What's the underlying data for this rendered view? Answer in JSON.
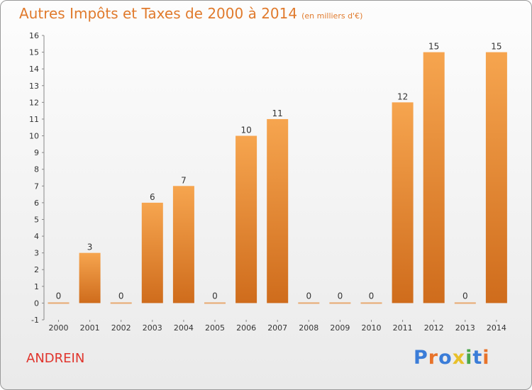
{
  "header": {
    "title": "Autres Impôts et Taxes de 2000 à 2014",
    "unit": "(en milliers d'€)"
  },
  "commune": "ANDREIN",
  "logo": {
    "text": "Proxiti",
    "letters": [
      {
        "ch": "P",
        "color": "#3b7dd8"
      },
      {
        "ch": "r",
        "color": "#e8732a"
      },
      {
        "ch": "o",
        "color": "#3b7dd8"
      },
      {
        "ch": "x",
        "color": "#e8c02a"
      },
      {
        "ch": "i",
        "color": "#4aa84a"
      },
      {
        "ch": "t",
        "color": "#3b7dd8"
      },
      {
        "ch": "i",
        "color": "#e8732a"
      }
    ]
  },
  "colors": {
    "bar_top": "#f6a54f",
    "bar_bottom": "#cf6c1c",
    "zero_bar": "#e7a970",
    "title": "#e07a2c",
    "commune": "#e0342c"
  },
  "chart_data": {
    "type": "bar",
    "categories": [
      "2000",
      "2001",
      "2002",
      "2003",
      "2004",
      "2005",
      "2006",
      "2007",
      "2008",
      "2009",
      "2010",
      "2011",
      "2012",
      "2013",
      "2014"
    ],
    "values": [
      0,
      3,
      0,
      6,
      7,
      0,
      10,
      11,
      0,
      0,
      0,
      12,
      15,
      0,
      15
    ],
    "title": "Autres Impôts et Taxes de 2000 à 2014",
    "ylim": [
      -1,
      16
    ],
    "yticks": [
      -1,
      0,
      1,
      2,
      3,
      4,
      5,
      6,
      7,
      8,
      9,
      10,
      11,
      12,
      13,
      14,
      15,
      16
    ],
    "grid": false,
    "legend": "none"
  }
}
